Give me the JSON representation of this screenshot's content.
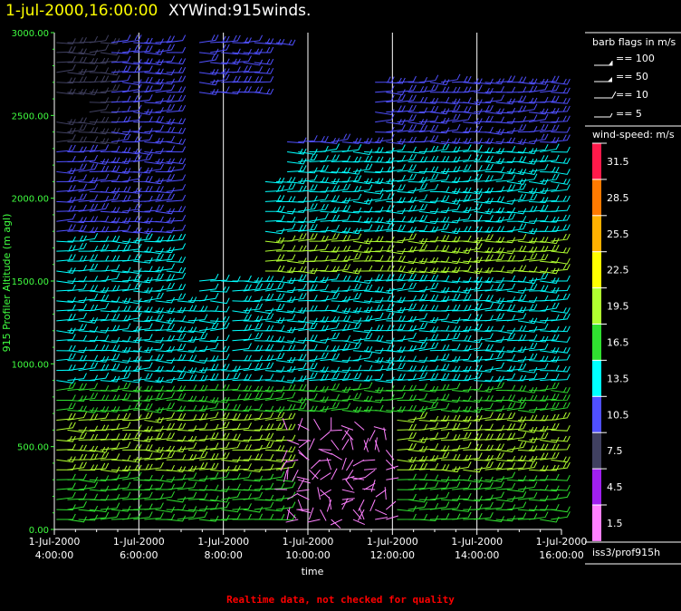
{
  "header": {
    "date_time": "1-jul-2000,16:00:00",
    "product": "XYWind:915winds."
  },
  "footer": {
    "quality_note": "Realtime data, not checked for quality"
  },
  "legend": {
    "barb_title": "barb flags in m/s",
    "barb_items": [
      "== 100",
      "== 50",
      "== 10",
      "== 5"
    ],
    "speed_title": "wind-speed: m/s",
    "speed_labels": [
      "31.5",
      "28.5",
      "25.5",
      "22.5",
      "19.5",
      "16.5",
      "13.5",
      "10.5",
      "7.5",
      "4.5",
      "1.5"
    ],
    "speed_colors": [
      "#ff1a4a",
      "#ff7a00",
      "#ffb000",
      "#ffff00",
      "#b0ff30",
      "#30e030",
      "#00ffff",
      "#5050ff",
      "#404060",
      "#a020f0",
      "#ff80ff"
    ],
    "station": "iss3/prof915h"
  },
  "colors": {
    "axis_label": "#40ff40",
    "axis": "#ffffff",
    "footer": "#ff0000",
    "date": "#ffff00"
  },
  "chart_data": {
    "type": "wind-barb time-height plot",
    "xlabel": "time",
    "ylabel": "915 Profiler Altitude (m agl)",
    "ylim": [
      0,
      3000
    ],
    "xlim": [
      4,
      16
    ],
    "y_ticks": [
      "0.00",
      "500.00",
      "1000.00",
      "1500.00",
      "2000.00",
      "2500.00",
      "3000.00"
    ],
    "y_tick_values": [
      0,
      500,
      1000,
      1500,
      2000,
      2500,
      3000
    ],
    "x_ticks": [
      {
        "hour": 4,
        "date": "1-Jul-2000",
        "time": "4:00:00"
      },
      {
        "hour": 6,
        "date": "1-Jul-2000",
        "time": "6:00:00"
      },
      {
        "hour": 8,
        "date": "1-Jul-2000",
        "time": "8:00:00"
      },
      {
        "hour": 10,
        "date": "1-Jul-2000",
        "time": "10:00:00"
      },
      {
        "hour": 12,
        "date": "1-Jul-2000",
        "time": "12:00:00"
      },
      {
        "hour": 14,
        "date": "1-Jul-2000",
        "time": "14:00:00"
      },
      {
        "hour": 16,
        "date": "1-Jul-2000",
        "time": "16:00:00"
      }
    ],
    "grid_hours": [
      6,
      8,
      10,
      12,
      14
    ]
  }
}
